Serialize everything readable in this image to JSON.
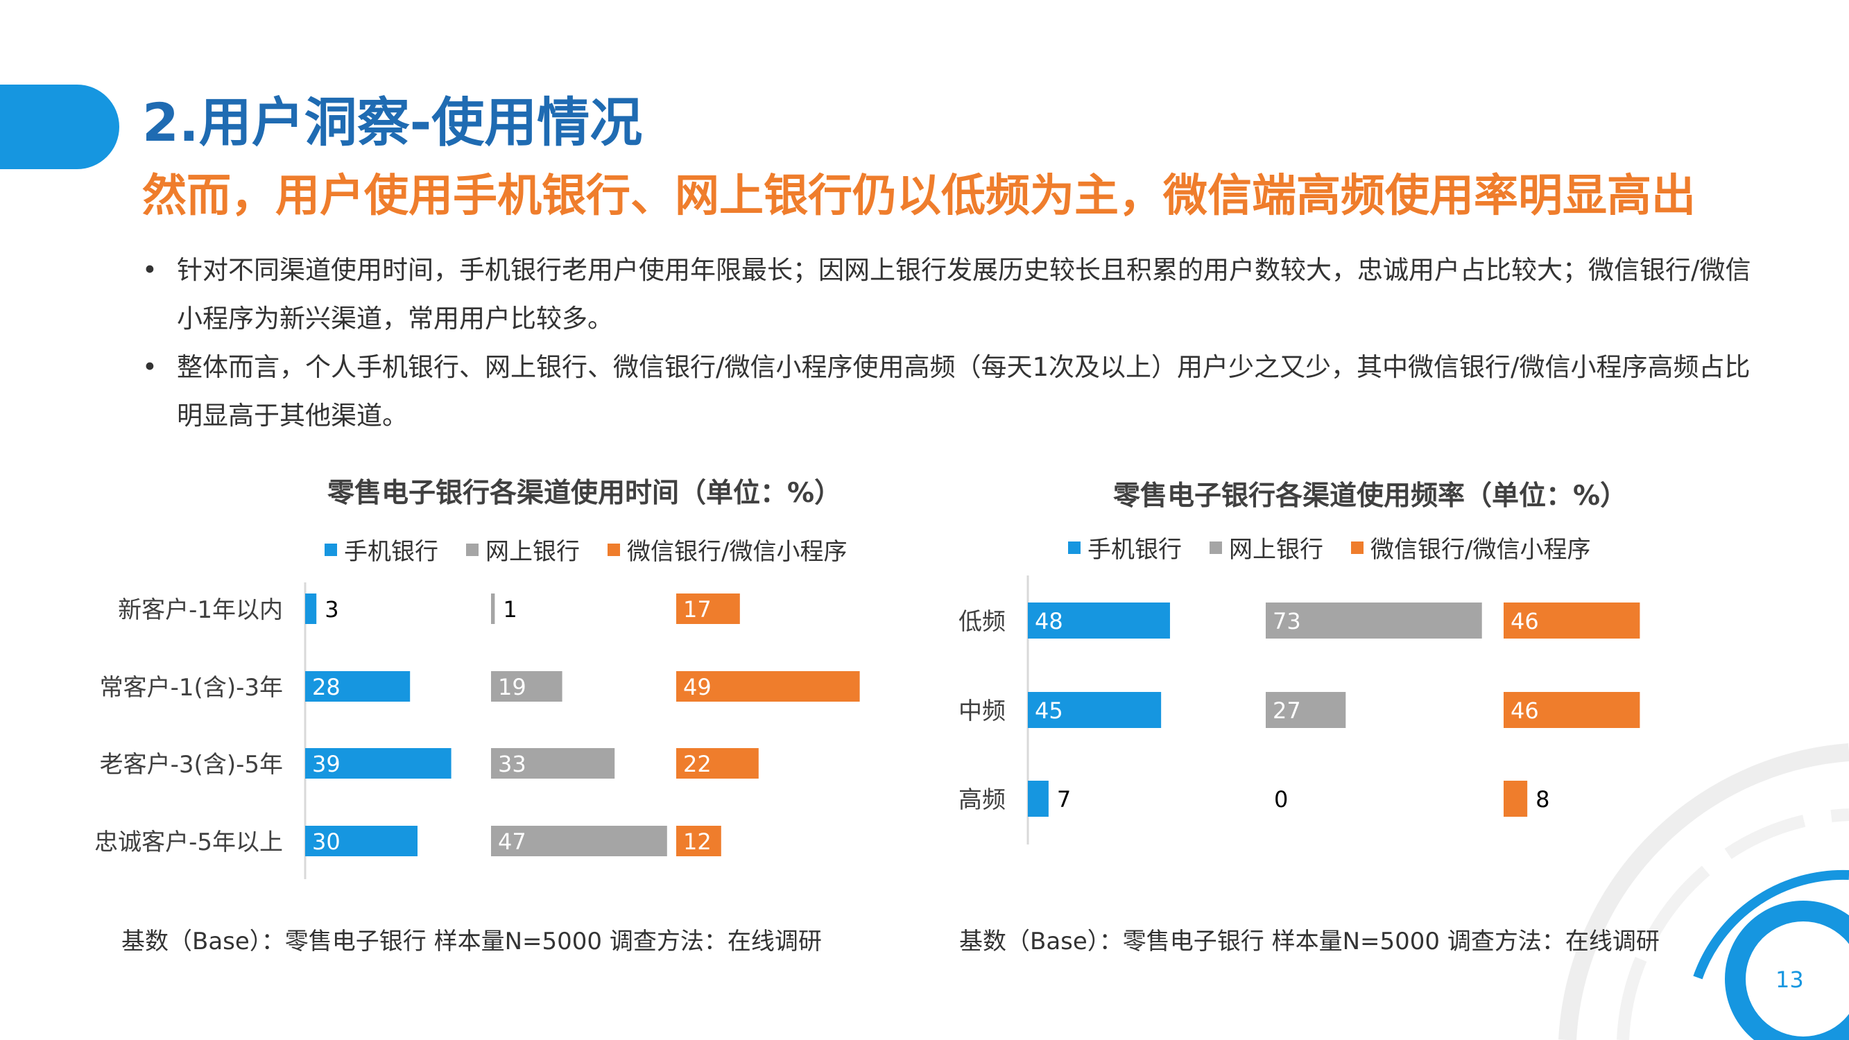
{
  "header": {
    "title": "2.用户洞察-使用情况",
    "subtitle": "然而，用户使用手机银行、网上银行仍以低频为主，微信端高频使用率明显高出"
  },
  "bullets": [
    {
      "marker": "•",
      "text": "针对不同渠道使用时间，手机银行老用户使用年限最长；因网上银行发展历史较长且积累的用户数较大，忠诚用户占比较大；微信银行/微信小程序为新兴渠道，常用用户比较多。"
    },
    {
      "marker": "•",
      "text": "整体而言，个人手机银行、网上银行、微信银行/微信小程序使用高频（每天1次及以上）用户少之又少，其中微信银行/微信小程序高频占比明显高于其他渠道。"
    }
  ],
  "colors": {
    "series1": "#1696e0",
    "series2": "#a5a5a5",
    "series3": "#ef7d2c",
    "title": "#1f6bb2",
    "subtitle": "#ef7d2c"
  },
  "chart_data": [
    {
      "type": "bar",
      "orientation": "horizontal",
      "title": "零售电子银行各渠道使用时间（单位：%）",
      "categories": [
        "新客户-1年以内",
        "常客户-1(含)-3年",
        "老客户-3(含)-5年",
        "忠诚客户-5年以上"
      ],
      "series": [
        {
          "name": "手机银行",
          "values": [
            3,
            28,
            39,
            30
          ]
        },
        {
          "name": "网上银行",
          "values": [
            1,
            19,
            33,
            47
          ]
        },
        {
          "name": "微信银行/微信小程序",
          "values": [
            17,
            49,
            22,
            12
          ]
        }
      ],
      "legend_position": "top",
      "grid": false
    },
    {
      "type": "bar",
      "orientation": "horizontal",
      "title": "零售电子银行各渠道使用频率（单位：%）",
      "categories": [
        "低频",
        "中频",
        "高频"
      ],
      "series": [
        {
          "name": "手机银行",
          "values": [
            48,
            45,
            7
          ]
        },
        {
          "name": "网上银行",
          "values": [
            73,
            27,
            0
          ]
        },
        {
          "name": "微信银行/微信小程序",
          "values": [
            46,
            46,
            8
          ]
        }
      ],
      "legend_position": "top",
      "grid": false
    }
  ],
  "footnotes": [
    "基数（Base）：零售电子银行  样本量N=5000  调查方法：在线调研",
    "基数（Base）：零售电子银行  样本量N=5000  调查方法：在线调研"
  ],
  "page_number": "13"
}
